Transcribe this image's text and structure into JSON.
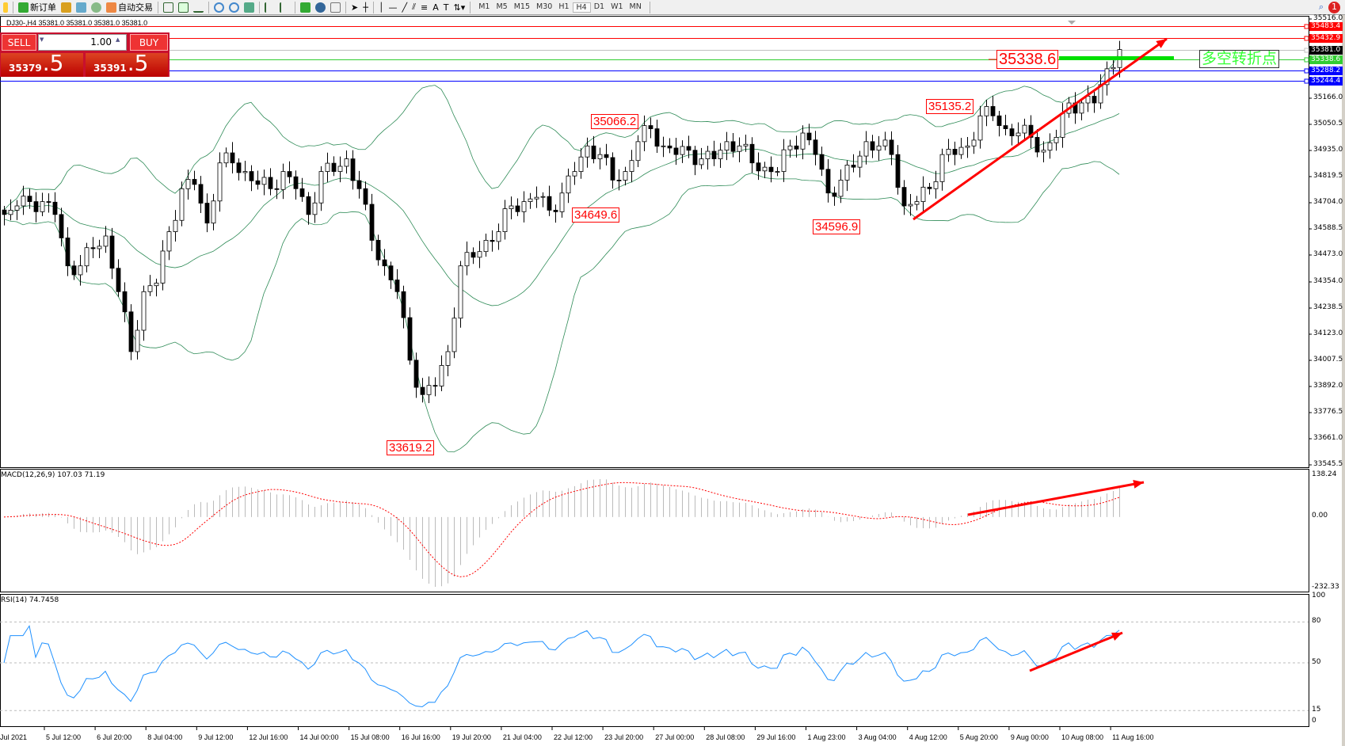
{
  "toolbar": {
    "new_order": "新订单",
    "auto_trading": "自动交易",
    "timeframes": [
      "M1",
      "M5",
      "M15",
      "M30",
      "H1",
      "H4",
      "D1",
      "W1",
      "MN"
    ],
    "active_timeframe": "H4",
    "alerts_badge": "1"
  },
  "chart": {
    "info": "DJ30-,H4  35381.0 35381.0 35381.0 35381.0",
    "symbol": "DJ30-",
    "timeframe": "H4"
  },
  "trade_panel": {
    "sell": "SELL",
    "buy": "BUY",
    "lot": "1.00",
    "sell_price_main": "35379",
    "sell_price_big": ".5",
    "buy_price_main": "35391",
    "buy_price_big": ".5"
  },
  "price_axis": {
    "max": 35516.0,
    "min": 33545.5,
    "ticks": [
      "35516.0",
      "35166.0",
      "35050.5",
      "34935.0",
      "34819.5",
      "34704.0",
      "34588.5",
      "34473.0",
      "34354.0",
      "34238.5",
      "34123.0",
      "34007.5",
      "33892.0",
      "33776.5",
      "33661.0",
      "33545.5"
    ]
  },
  "levels": [
    {
      "price": "35483.4",
      "color": "#ff0000"
    },
    {
      "price": "35432.9",
      "color": "#ff0000"
    },
    {
      "price": "35381.0",
      "color": "#c0c0c0",
      "label_bg": "#000000"
    },
    {
      "price": "35338.6",
      "color": "#32cd32"
    },
    {
      "price": "35288.2",
      "color": "#0000ff"
    },
    {
      "price": "35244.4",
      "color": "#0000ff"
    }
  ],
  "annotations": {
    "high1": "35066.2",
    "low1": "34649.6",
    "high2": "35135.2",
    "low2": "34596.9",
    "low0": "33619.2",
    "pivot": "35338.6",
    "pivot_text": "多空转折点"
  },
  "indicators": {
    "macd_label": "MACD(12,26,9) 107.03 71.19",
    "macd_max": "138.24",
    "macd_zero": "0.00",
    "macd_min": "-232.33",
    "rsi_label": "RSI(14) 74.7458",
    "rsi_levels": [
      "100",
      "80",
      "50",
      "15",
      "0"
    ]
  },
  "time_axis": [
    "Jul 2021",
    "5 Jul 12:00",
    "6 Jul 20:00",
    "8 Jul 04:00",
    "9 Jul 12:00",
    "12 Jul 16:00",
    "14 Jul 00:00",
    "15 Jul 08:00",
    "16 Jul 16:00",
    "19 Jul 20:00",
    "21 Jul 04:00",
    "22 Jul 12:00",
    "23 Jul 20:00",
    "27 Jul 00:00",
    "28 Jul 08:00",
    "29 Jul 16:00",
    "1 Aug 23:00",
    "3 Aug 04:00",
    "4 Aug 12:00",
    "5 Aug 20:00",
    "9 Aug 00:00",
    "10 Aug 08:00",
    "11 Aug 16:00"
  ],
  "chart_data": {
    "type": "candlestick",
    "overlays": [
      "Bollinger Bands",
      "MACD(12,26,9)",
      "RSI(14)"
    ],
    "approx_closes": [
      34652,
      34690,
      34709,
      34709,
      34652,
      34425,
      34425,
      34501,
      34557,
      34311,
      34046,
      34311,
      34349,
      34576,
      34766,
      34785,
      34614,
      34880,
      34880,
      34842,
      34785,
      34766,
      34842,
      34766,
      34652,
      34842,
      34842,
      34898,
      34766,
      34538,
      34425,
      34311,
      34008,
      33856,
      33894,
      34046,
      34425,
      34463,
      34538,
      34576,
      34690,
      34709,
      34728,
      34671,
      34747,
      34842,
      34955,
      34917,
      34804,
      34842,
      34974,
      35031,
      34955,
      34917,
      34936,
      34898,
      34898,
      34974,
      34955,
      34880,
      34861,
      34842,
      34955,
      35012,
      34917,
      34747,
      34804,
      34861,
      34974,
      34955,
      34917,
      34690,
      34709,
      34766,
      34917,
      34917,
      34955,
      35088,
      35088,
      35031,
      35012,
      34993,
      34936,
      34993,
      35145,
      35145,
      35145,
      35296,
      35381
    ]
  }
}
